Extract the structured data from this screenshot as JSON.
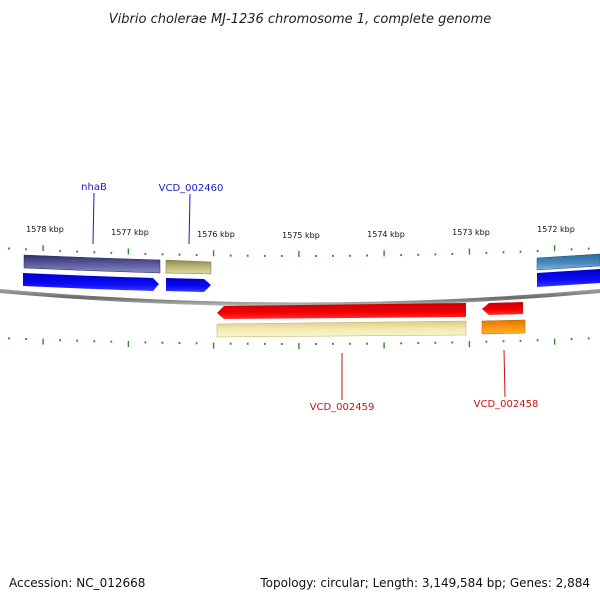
{
  "title": "Vibrio cholerae MJ-1236 chromosome 1, complete genome",
  "scale": {
    "kbp_labels": [
      "1578 kbp",
      "1577 kbp",
      "1576 kbp",
      "1575 kbp",
      "1574 kbp",
      "1573 kbp",
      "1572 kbp"
    ]
  },
  "gene_labels": {
    "nhab": "nhaB",
    "vcd_002460": "VCD_002460",
    "vcd_002459": "VCD_002459",
    "vcd_002458": "VCD_002458"
  },
  "footer": {
    "accession": "Accession: NC_012668",
    "stats": "Topology: circular; Length: 3,149,584 bp; Genes: 2,884"
  },
  "colors": {
    "forward_label": "#1a1acc",
    "reverse_label": "#cc1111",
    "tick": "#2e8b2e",
    "backbone": "#7a7a7a",
    "cds_forward": "#0000ee",
    "cds_reverse": "#ee0000",
    "gene_purple": "#4a4a8e",
    "gene_khaki": "#b8b070",
    "gene_cream": "#f0e4a0",
    "gene_orange": "#ff8c00",
    "gene_steelblue": "#4682b4"
  }
}
